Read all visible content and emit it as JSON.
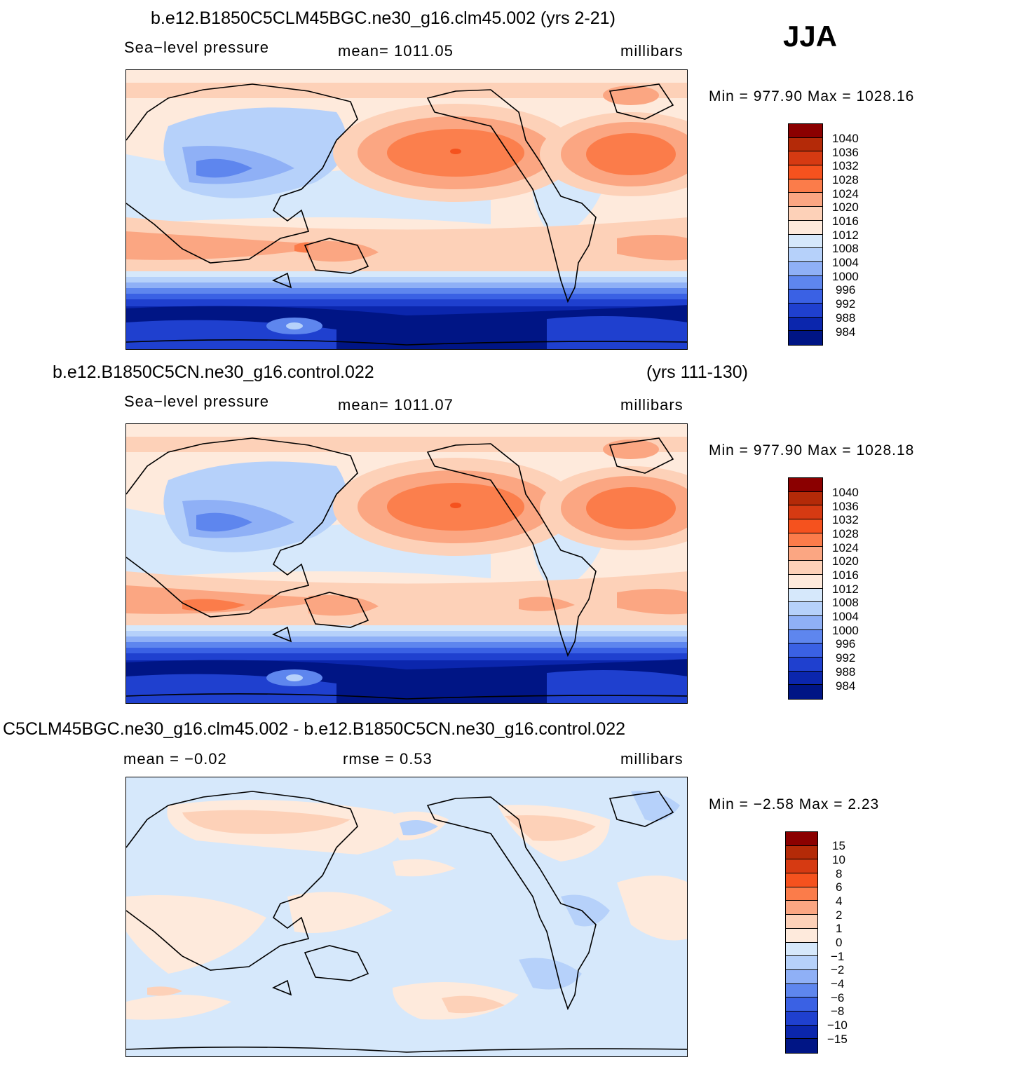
{
  "season": "JJA",
  "panels": [
    {
      "title": "b.e12.B1850C5CLM45BGC.ne30_g16.clm45.002 (yrs 2-21)",
      "title_right": "",
      "left": "Sea−level  pressure",
      "center": "mean=  1011.05",
      "units": "millibars",
      "minmax": "Min  =  977.90  Max  =  1028.16",
      "kind": "abs"
    },
    {
      "title": "b.e12.B1850C5CN.ne30_g16.control.022",
      "title_right": "(yrs 111-130)",
      "left": "Sea−level  pressure",
      "center": "mean=  1011.07",
      "units": "millibars",
      "minmax": "Min  =  977.90  Max  =  1028.18",
      "kind": "abs"
    },
    {
      "title": "C5CLM45BGC.ne30_g16.clm45.002 - b.e12.B1850C5CN.ne30_g16.control.022",
      "title_right": "",
      "left": "mean  =    −0.02",
      "center": "rmse  =     0.53",
      "units": "millibars",
      "minmax": "Min  =     −2.58  Max  =      2.23",
      "kind": "diff"
    }
  ],
  "colorbar_abs": {
    "labels": [
      "1040",
      "1036",
      "1032",
      "1028",
      "1024",
      "1020",
      "1016",
      "1012",
      "1008",
      "1004",
      "1000",
      "996",
      "992",
      "988",
      "984"
    ]
  },
  "colorbar_diff": {
    "labels": [
      "15",
      "10",
      "8",
      "6",
      "4",
      "2",
      "1",
      "0",
      "−1",
      "−2",
      "−4",
      "−6",
      "−8",
      "−10",
      "−15"
    ]
  },
  "colors": {
    "scale": [
      "#8b0000",
      "#b42a08",
      "#d63a12",
      "#f5521e",
      "#fb7c4a",
      "#fba682",
      "#fdd1b8",
      "#feeadc",
      "#d6e8fb",
      "#b6d1fa",
      "#8fb0f6",
      "#5e86ee",
      "#3a61e4",
      "#1f40cf",
      "#0b26ad",
      "#001585"
    ]
  }
}
